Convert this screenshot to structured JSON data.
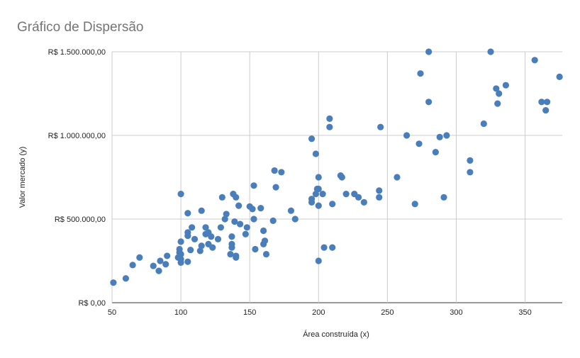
{
  "chart_data": {
    "type": "scatter",
    "title": "Gráfico de Dispersão",
    "xlabel": "Área construída (x)",
    "ylabel": "Valor mercado (y)",
    "xlim": [
      50,
      377
    ],
    "ylim": [
      0,
      1500000
    ],
    "x_ticks": [
      50,
      100,
      150,
      200,
      250,
      300,
      350
    ],
    "x_tick_labels": [
      "50",
      "100",
      "150",
      "200",
      "250",
      "300",
      "350"
    ],
    "y_ticks": [
      0,
      500000,
      1000000,
      1500000
    ],
    "y_tick_labels": [
      "R$ 0,00",
      "R$ 500.000,00",
      "R$ 1.000.000,00",
      "R$ 1.500.000,00"
    ],
    "grid": true,
    "legend": "none",
    "marker_color": "#4a7ebb",
    "series": [
      {
        "points": [
          [
            51,
            120000
          ],
          [
            60,
            145000
          ],
          [
            65,
            225000
          ],
          [
            70,
            270000
          ],
          [
            80,
            220000
          ],
          [
            84,
            190000
          ],
          [
            85,
            250000
          ],
          [
            89,
            230000
          ],
          [
            90,
            280000
          ],
          [
            98,
            270000
          ],
          [
            99,
            300000
          ],
          [
            99,
            320000
          ],
          [
            100,
            650000
          ],
          [
            100,
            365000
          ],
          [
            100,
            290000
          ],
          [
            100,
            260000
          ],
          [
            100,
            240000
          ],
          [
            105,
            420000
          ],
          [
            105,
            535000
          ],
          [
            105,
            245000
          ],
          [
            105,
            400000
          ],
          [
            107,
            315000
          ],
          [
            108,
            450000
          ],
          [
            110,
            380000
          ],
          [
            114,
            310000
          ],
          [
            115,
            550000
          ],
          [
            115,
            340000
          ],
          [
            118,
            410000
          ],
          [
            118,
            450000
          ],
          [
            120,
            350000
          ],
          [
            120,
            420000
          ],
          [
            122,
            395000
          ],
          [
            123,
            330000
          ],
          [
            127,
            380000
          ],
          [
            129,
            450000
          ],
          [
            130,
            630000
          ],
          [
            132,
            500000
          ],
          [
            133,
            530000
          ],
          [
            136,
            290000
          ],
          [
            137,
            350000
          ],
          [
            137,
            330000
          ],
          [
            137,
            395000
          ],
          [
            138,
            650000
          ],
          [
            139,
            485000
          ],
          [
            140,
            280000
          ],
          [
            140,
            270000
          ],
          [
            140,
            630000
          ],
          [
            142,
            580000
          ],
          [
            143,
            470000
          ],
          [
            147,
            410000
          ],
          [
            148,
            450000
          ],
          [
            150,
            575000
          ],
          [
            152,
            560000
          ],
          [
            153,
            700000
          ],
          [
            153,
            500000
          ],
          [
            154,
            320000
          ],
          [
            158,
            565000
          ],
          [
            160,
            430000
          ],
          [
            160,
            350000
          ],
          [
            161,
            370000
          ],
          [
            162,
            290000
          ],
          [
            167,
            490000
          ],
          [
            168,
            790000
          ],
          [
            169,
            690000
          ],
          [
            173,
            780000
          ],
          [
            180,
            550000
          ],
          [
            183,
            500000
          ],
          [
            195,
            980000
          ],
          [
            195,
            620000
          ],
          [
            195,
            600000
          ],
          [
            198,
            890000
          ],
          [
            198,
            650000
          ],
          [
            199,
            680000
          ],
          [
            200,
            750000
          ],
          [
            200,
            680000
          ],
          [
            200,
            580000
          ],
          [
            200,
            250000
          ],
          [
            203,
            650000
          ],
          [
            204,
            330000
          ],
          [
            208,
            1050000
          ],
          [
            208,
            1100000
          ],
          [
            210,
            590000
          ],
          [
            210,
            330000
          ],
          [
            216,
            760000
          ],
          [
            217,
            750000
          ],
          [
            220,
            650000
          ],
          [
            226,
            650000
          ],
          [
            229,
            630000
          ],
          [
            233,
            600000
          ],
          [
            244,
            670000
          ],
          [
            244,
            630000
          ],
          [
            245,
            1050000
          ],
          [
            257,
            750000
          ],
          [
            264,
            1000000
          ],
          [
            270,
            590000
          ],
          [
            273,
            950000
          ],
          [
            274,
            1370000
          ],
          [
            280,
            1500000
          ],
          [
            280,
            1200000
          ],
          [
            285,
            900000
          ],
          [
            288,
            990000
          ],
          [
            291,
            630000
          ],
          [
            293,
            1000000
          ],
          [
            310,
            850000
          ],
          [
            310,
            780000
          ],
          [
            320,
            1070000
          ],
          [
            325,
            1500000
          ],
          [
            329,
            1280000
          ],
          [
            330,
            1190000
          ],
          [
            331,
            1250000
          ],
          [
            336,
            1300000
          ],
          [
            357,
            1450000
          ],
          [
            362,
            1200000
          ],
          [
            365,
            1150000
          ],
          [
            366,
            1200000
          ],
          [
            375,
            1350000
          ]
        ]
      }
    ]
  }
}
